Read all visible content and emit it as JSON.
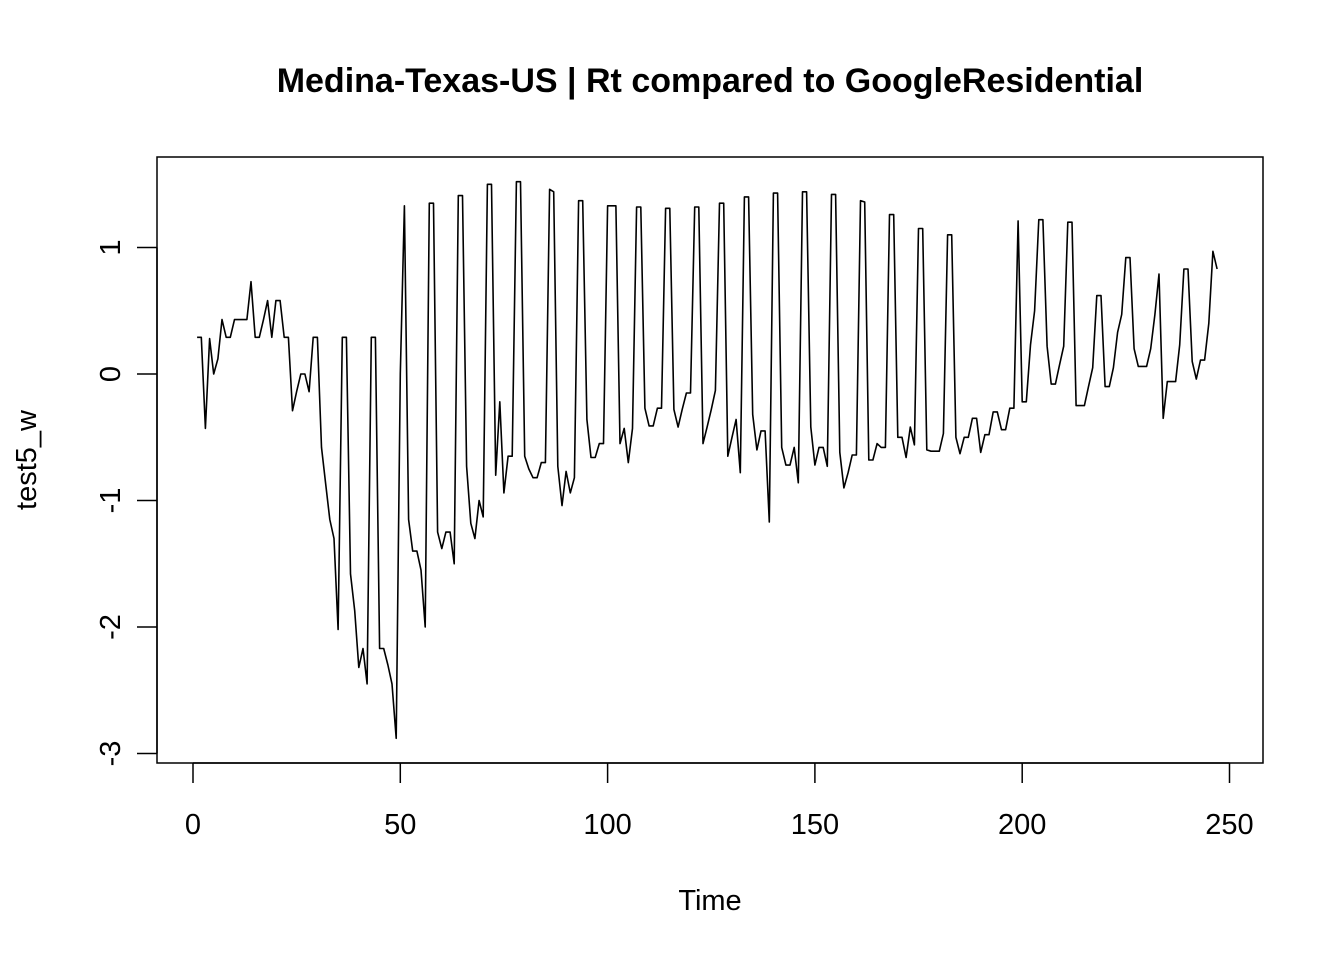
{
  "chart_data": {
    "type": "line",
    "title": "Medina-Texas-US | Rt compared to GoogleResidential",
    "xlabel": "Time",
    "ylabel": "test5_w",
    "xlim": [
      1,
      248
    ],
    "ylim": [
      -3,
      1.5
    ],
    "x_ticks": [
      0,
      50,
      100,
      150,
      200,
      250
    ],
    "y_ticks": [
      -3,
      -2,
      -1,
      0,
      1
    ],
    "grid": false,
    "series": [
      {
        "x_start": 1,
        "values": [
          0.29,
          0.29,
          -0.43,
          0.28,
          0.0,
          0.12,
          0.43,
          0.29,
          0.29,
          0.43,
          0.43,
          0.43,
          0.43,
          0.73,
          0.29,
          0.29,
          0.43,
          0.58,
          0.29,
          0.58,
          0.58,
          0.29,
          0.29,
          -0.29,
          -0.14,
          0.0,
          0.0,
          -0.14,
          0.29,
          0.29,
          -0.58,
          -0.87,
          -1.15,
          -1.3,
          -2.02,
          0.29,
          0.29,
          -1.58,
          -1.87,
          -2.32,
          -2.17,
          -2.45,
          0.29,
          0.29,
          -2.17,
          -2.17,
          -2.3,
          -2.45,
          -2.88,
          0.0,
          1.33,
          -1.15,
          -1.4,
          -1.4,
          -1.55,
          -2.0,
          1.35,
          1.35,
          -1.25,
          -1.38,
          -1.25,
          -1.25,
          -1.5,
          1.41,
          1.41,
          -0.73,
          -1.18,
          -1.3,
          -1.0,
          -1.13,
          1.5,
          1.5,
          -0.8,
          -0.22,
          -0.94,
          -0.65,
          -0.65,
          1.52,
          1.52,
          -0.65,
          -0.75,
          -0.82,
          -0.82,
          -0.7,
          -0.7,
          1.46,
          1.44,
          -0.73,
          -1.04,
          -0.77,
          -0.94,
          -0.82,
          1.37,
          1.37,
          -0.36,
          -0.66,
          -0.66,
          -0.55,
          -0.55,
          1.33,
          1.33,
          1.33,
          -0.55,
          -0.43,
          -0.7,
          -0.43,
          1.32,
          1.32,
          -0.27,
          -0.41,
          -0.41,
          -0.27,
          -0.27,
          1.31,
          1.31,
          -0.28,
          -0.42,
          -0.28,
          -0.15,
          -0.15,
          1.32,
          1.32,
          -0.55,
          -0.42,
          -0.28,
          -0.13,
          1.35,
          1.35,
          -0.65,
          -0.5,
          -0.36,
          -0.78,
          1.4,
          1.4,
          -0.32,
          -0.6,
          -0.45,
          -0.45,
          -1.17,
          1.43,
          1.43,
          -0.58,
          -0.72,
          -0.72,
          -0.58,
          -0.86,
          1.44,
          1.44,
          -0.42,
          -0.72,
          -0.58,
          -0.58,
          -0.73,
          1.42,
          1.42,
          -0.62,
          -0.9,
          -0.78,
          -0.64,
          -0.64,
          1.37,
          1.36,
          -0.68,
          -0.68,
          -0.55,
          -0.58,
          -0.58,
          1.26,
          1.26,
          -0.5,
          -0.5,
          -0.66,
          -0.42,
          -0.56,
          1.15,
          1.15,
          -0.6,
          -0.61,
          -0.61,
          -0.61,
          -0.47,
          1.1,
          1.1,
          -0.5,
          -0.63,
          -0.5,
          -0.5,
          -0.35,
          -0.35,
          -0.62,
          -0.48,
          -0.48,
          -0.3,
          -0.3,
          -0.44,
          -0.44,
          -0.27,
          -0.27,
          1.21,
          -0.22,
          -0.22,
          0.23,
          0.5,
          1.22,
          1.22,
          0.22,
          -0.08,
          -0.08,
          0.07,
          0.22,
          1.2,
          1.2,
          -0.25,
          -0.25,
          -0.25,
          -0.1,
          0.05,
          0.62,
          0.62,
          -0.1,
          -0.1,
          0.05,
          0.33,
          0.47,
          0.92,
          0.92,
          0.2,
          0.06,
          0.06,
          0.06,
          0.2,
          0.47,
          0.79,
          -0.35,
          -0.06,
          -0.06,
          -0.06,
          0.23,
          0.83,
          0.83,
          0.1,
          -0.04,
          0.11,
          0.11,
          0.4,
          0.97,
          0.83
        ]
      }
    ]
  }
}
